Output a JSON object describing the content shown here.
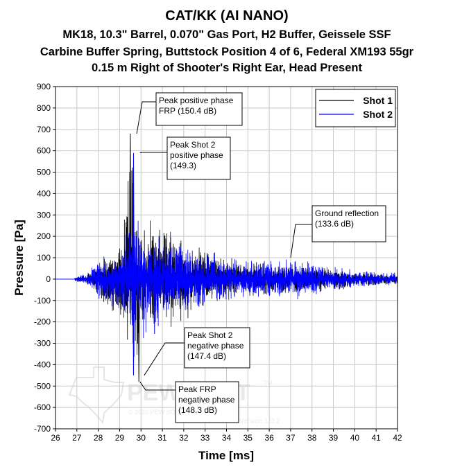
{
  "chart_data": {
    "type": "line",
    "title": "CAT/KK (AI NANO)",
    "subtitle_lines": [
      "MK18, 10.3\" Barrel, 0.070\" Gas Port, H2 Buffer, Geissele SSF",
      "Carbine Buffer Spring, Buttstock Position 4 of 6, Federal XM193 55gr",
      "0.15 m Right of Shooter's Right Ear, Head Present"
    ],
    "xlabel": "Time [ms]",
    "ylabel": "Pressure [Pa]",
    "xlim": [
      26,
      42
    ],
    "ylim": [
      -700,
      900
    ],
    "xticks": [
      "26",
      "27",
      "28",
      "29",
      "30",
      "31",
      "32",
      "33",
      "34",
      "35",
      "36",
      "37",
      "38",
      "39",
      "40",
      "41",
      "42"
    ],
    "yticks": [
      "900",
      "800",
      "700",
      "600",
      "500",
      "400",
      "300",
      "200",
      "100",
      "0",
      "-100",
      "-200",
      "-300",
      "-400",
      "-500",
      "-600",
      "-700"
    ],
    "grid": true,
    "legend_position": "top-right",
    "series": [
      {
        "name": "Shot 1",
        "color": "#000000",
        "x": [
          26.0,
          27.0,
          27.6,
          28.0,
          28.4,
          28.8,
          29.2,
          29.5,
          29.65,
          29.8,
          29.9,
          30.0,
          30.2,
          30.5,
          31.0,
          32.0,
          33.0,
          34.0,
          35.0,
          36.0,
          37.0,
          38.0,
          39.0,
          40.0,
          41.0,
          42.0
        ],
        "envelope_max": [
          0,
          10,
          40,
          100,
          120,
          110,
          300,
          680,
          500,
          350,
          400,
          300,
          250,
          300,
          280,
          200,
          150,
          110,
          90,
          90,
          80,
          70,
          50,
          40,
          35,
          30
        ],
        "envelope_min": [
          0,
          -10,
          -40,
          -100,
          -150,
          -200,
          -220,
          -350,
          -460,
          -420,
          -480,
          -300,
          -350,
          -320,
          -250,
          -200,
          -150,
          -100,
          -90,
          -90,
          -80,
          -70,
          -50,
          -40,
          -35,
          -30
        ]
      },
      {
        "name": "Shot 2",
        "color": "#0000ff",
        "x": [
          26.0,
          27.0,
          27.6,
          28.0,
          28.4,
          28.8,
          29.2,
          29.5,
          29.65,
          29.8,
          29.9,
          30.0,
          30.2,
          30.5,
          31.0,
          32.0,
          33.0,
          34.0,
          35.0,
          36.0,
          37.0,
          38.0,
          39.0,
          40.0,
          41.0,
          42.0
        ],
        "envelope_max": [
          0,
          15,
          45,
          110,
          120,
          110,
          200,
          350,
          590,
          400,
          300,
          250,
          200,
          250,
          250,
          180,
          150,
          110,
          90,
          100,
          110,
          90,
          60,
          45,
          40,
          30
        ],
        "envelope_min": [
          0,
          -15,
          -45,
          -110,
          -150,
          -180,
          -200,
          -300,
          -450,
          -380,
          -340,
          -300,
          -280,
          -280,
          -230,
          -180,
          -150,
          -110,
          -90,
          -100,
          -100,
          -90,
          -60,
          -45,
          -40,
          -30
        ]
      }
    ],
    "annotations": [
      {
        "lines": [
          "Peak positive phase",
          "FRP (150.4 dB)"
        ],
        "point": [
          29.8,
          680
        ]
      },
      {
        "lines": [
          "Peak Shot 2",
          "positive phase",
          "(149.3)"
        ],
        "point": [
          29.95,
          590
        ]
      },
      {
        "lines": [
          "Ground reflection",
          "(133.6 dB)"
        ],
        "point": [
          37.0,
          100
        ]
      },
      {
        "lines": [
          "Peak Shot 2",
          "negative phase",
          "(147.4 dB)"
        ],
        "point": [
          30.15,
          -450
        ]
      },
      {
        "lines": [
          "Peak FRP",
          "negative phase",
          "(148.3 dB)"
        ],
        "point": [
          29.95,
          -480
        ]
      }
    ]
  },
  "watermark": {
    "brand": "PEW SOFT",
    "tm": "TM",
    "copyright": "© 2020 PEW SOFT",
    "version": "Version 1.0.2"
  }
}
